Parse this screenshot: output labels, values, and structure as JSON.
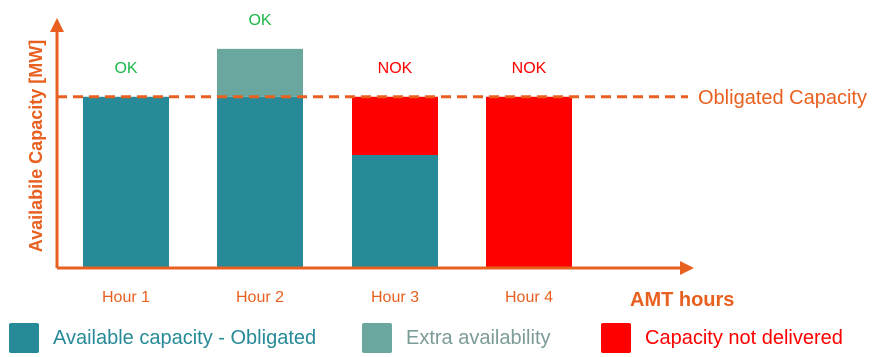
{
  "chart_data": {
    "type": "bar",
    "stacked": true,
    "ylabel": "Availabile Capacity [MW]",
    "xlabel": "AMT hours",
    "categories": [
      "Hour 1",
      "Hour 2",
      "Hour 3",
      "Hour 4"
    ],
    "status_labels": [
      "OK",
      "OK",
      "NOK",
      "NOK"
    ],
    "obligated_capacity": 1.0,
    "obligated_label": "Obligated Capacity",
    "ylim": [
      0,
      1.32
    ],
    "series": [
      {
        "name": "Available capacity - Obligated",
        "values": [
          1.0,
          1.0,
          0.66,
          0.0
        ],
        "color": "#268a98"
      },
      {
        "name": "Extra availability",
        "values": [
          0.0,
          0.28,
          0.0,
          0.0
        ],
        "color": "#6aa89f"
      },
      {
        "name": "Capacity not delivered",
        "values": [
          0.0,
          0.0,
          0.34,
          1.0
        ],
        "color": "#ff0000"
      }
    ],
    "colors": {
      "axis": "#e8601f",
      "ok": "#1db84a",
      "nok": "#ff0000",
      "tick_label": "#e8601f",
      "legend_text_teal": "#268a98",
      "legend_text_gray": "#7a9b97",
      "legend_text_red": "#ff0000"
    }
  }
}
